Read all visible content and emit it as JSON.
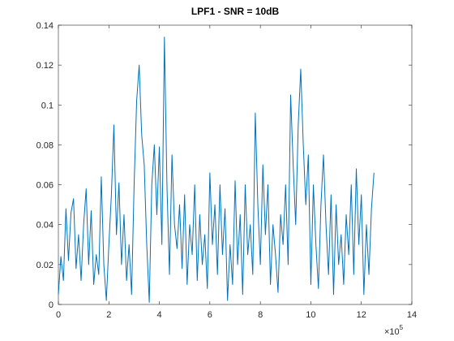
{
  "chart_data": {
    "type": "line",
    "title": "LPF1 - SNR = 10dB",
    "x_exponent_base": "×10",
    "x_exponent": "5",
    "x": [
      0.0,
      0.1,
      0.2,
      0.3,
      0.4,
      0.5,
      0.6,
      0.7,
      0.8,
      0.9,
      1.0,
      1.1,
      1.2,
      1.3,
      1.4,
      1.5,
      1.6,
      1.7,
      1.8,
      1.9,
      2.0,
      2.1,
      2.2,
      2.3,
      2.4,
      2.5,
      2.6,
      2.7,
      2.8,
      2.9,
      3.0,
      3.1,
      3.2,
      3.3,
      3.4,
      3.5,
      3.6,
      3.7,
      3.8,
      3.9,
      4.0,
      4.1,
      4.2,
      4.3,
      4.4,
      4.5,
      4.6,
      4.7,
      4.8,
      4.9,
      5.0,
      5.1,
      5.2,
      5.3,
      5.4,
      5.5,
      5.6,
      5.7,
      5.8,
      5.9,
      6.0,
      6.1,
      6.2,
      6.3,
      6.4,
      6.5,
      6.6,
      6.7,
      6.8,
      6.9,
      7.0,
      7.1,
      7.2,
      7.3,
      7.4,
      7.5,
      7.6,
      7.7,
      7.8,
      7.9,
      8.0,
      8.1,
      8.2,
      8.3,
      8.4,
      8.5,
      8.6,
      8.7,
      8.8,
      8.9,
      9.0,
      9.1,
      9.2,
      9.3,
      9.4,
      9.5,
      9.6,
      9.7,
      9.8,
      9.9,
      10.0,
      10.1,
      10.2,
      10.3,
      10.4,
      10.5,
      10.6,
      10.7,
      10.8,
      10.9,
      11.0,
      11.1,
      11.2,
      11.3,
      11.4,
      11.5,
      11.6,
      11.7,
      11.8,
      11.9,
      12.0,
      12.1,
      12.2,
      12.3,
      12.4,
      12.5
    ],
    "series": [
      {
        "color": "#0072bd",
        "values": [
          0.005,
          0.024,
          0.012,
          0.048,
          0.022,
          0.046,
          0.053,
          0.018,
          0.035,
          0.012,
          0.04,
          0.058,
          0.02,
          0.047,
          0.01,
          0.025,
          0.015,
          0.064,
          0.02,
          0.002,
          0.03,
          0.055,
          0.09,
          0.035,
          0.061,
          0.02,
          0.045,
          0.012,
          0.03,
          0.005,
          0.06,
          0.102,
          0.12,
          0.085,
          0.07,
          0.03,
          0.001,
          0.06,
          0.08,
          0.045,
          0.079,
          0.03,
          0.134,
          0.06,
          0.015,
          0.075,
          0.04,
          0.028,
          0.05,
          0.018,
          0.055,
          0.01,
          0.04,
          0.025,
          0.06,
          0.012,
          0.045,
          0.02,
          0.035,
          0.008,
          0.066,
          0.03,
          0.05,
          0.015,
          0.06,
          0.025,
          0.048,
          0.002,
          0.03,
          0.01,
          0.062,
          0.02,
          0.045,
          0.005,
          0.06,
          0.025,
          0.04,
          0.015,
          0.096,
          0.05,
          0.02,
          0.07,
          0.035,
          0.06,
          0.01,
          0.04,
          0.025,
          0.006,
          0.045,
          0.03,
          0.06,
          0.02,
          0.105,
          0.07,
          0.04,
          0.09,
          0.118,
          0.08,
          0.05,
          0.075,
          0.01,
          0.06,
          0.03,
          0.008,
          0.05,
          0.075,
          0.04,
          0.015,
          0.055,
          0.005,
          0.05,
          0.02,
          0.035,
          0.01,
          0.045,
          0.025,
          0.06,
          0.015,
          0.068,
          0.03,
          0.055,
          0.005,
          0.04,
          0.015,
          0.048,
          0.066
        ]
      }
    ],
    "xlim": [
      0,
      14
    ],
    "xticks": [
      0,
      2,
      4,
      6,
      8,
      10,
      12,
      14
    ],
    "ylim": [
      0,
      0.14
    ],
    "yticks": [
      0,
      0.02,
      0.04,
      0.06,
      0.08,
      0.1,
      0.12,
      0.14
    ]
  }
}
